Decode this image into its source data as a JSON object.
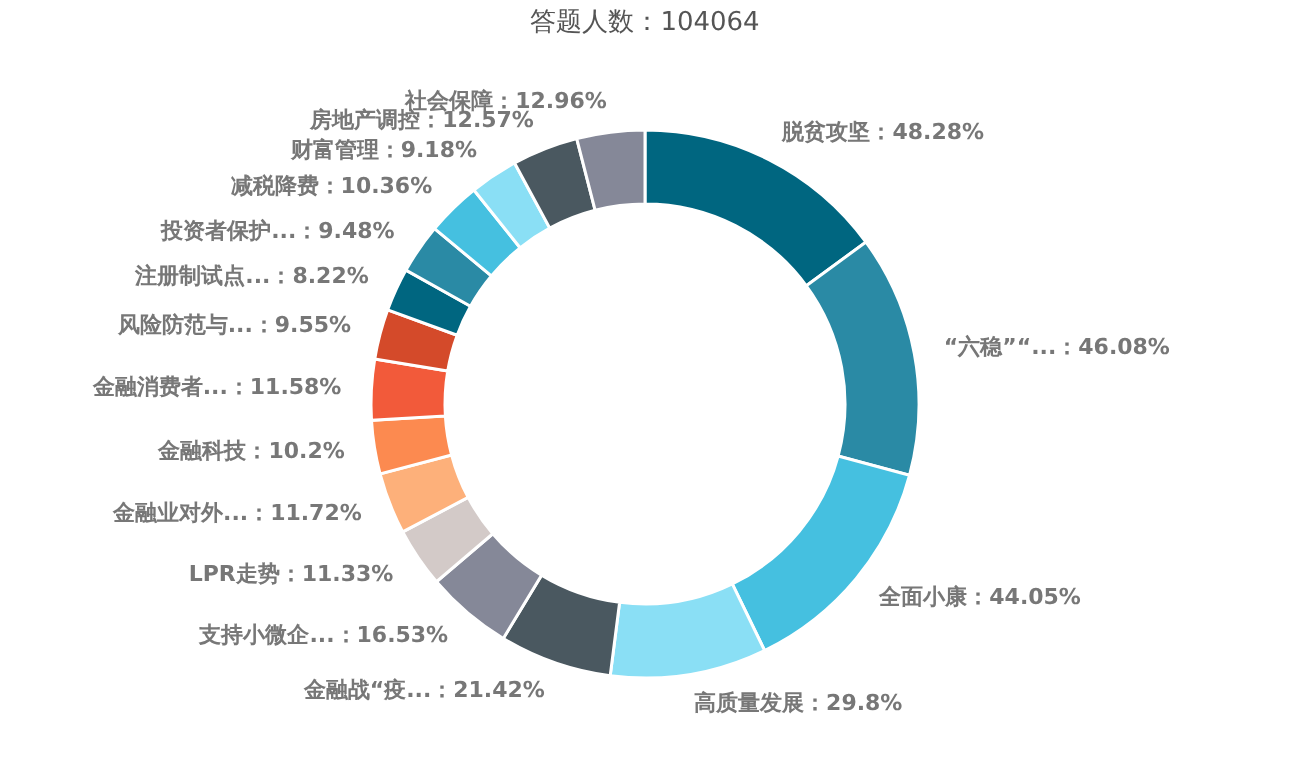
{
  "chart_data": {
    "type": "donut",
    "title": "答题人数：104064",
    "categories": [
      "脱贫攻坚",
      "“六稳”“...",
      "全面小康",
      "高质量发展",
      "金融战“疫...",
      "支持小微企...",
      "LPR走势",
      "金融业对外...",
      "金融科技",
      "金融消费者...",
      "风险防范与...",
      "注册制试点...",
      "投资者保护...",
      "减税降费",
      "财富管理",
      "房地产调控",
      "社会保障"
    ],
    "values": [
      48.28,
      46.08,
      44.05,
      29.8,
      21.42,
      16.53,
      11.33,
      11.72,
      10.2,
      11.58,
      9.55,
      8.22,
      9.48,
      10.36,
      9.18,
      12.57,
      12.96
    ],
    "value_labels": [
      "48.28%",
      "46.08%",
      "44.05%",
      "29.8%",
      "21.42%",
      "16.53%",
      "11.33%",
      "11.72%",
      "10.2%",
      "11.58%",
      "9.55%",
      "8.22%",
      "9.48%",
      "10.36%",
      "9.18%",
      "12.57%",
      "12.96%"
    ],
    "colors": [
      "#006680",
      "#2a8aa5",
      "#45c0e0",
      "#8adff5",
      "#4a5860",
      "#858898",
      "#d3cac8",
      "#fdb07a",
      "#fc8a50",
      "#f25a3a",
      "#d44a2a",
      "#006680",
      "#2a8aa5",
      "#45c0e0",
      "#8adff5",
      "#4a5860",
      "#858898"
    ],
    "legend": false
  }
}
